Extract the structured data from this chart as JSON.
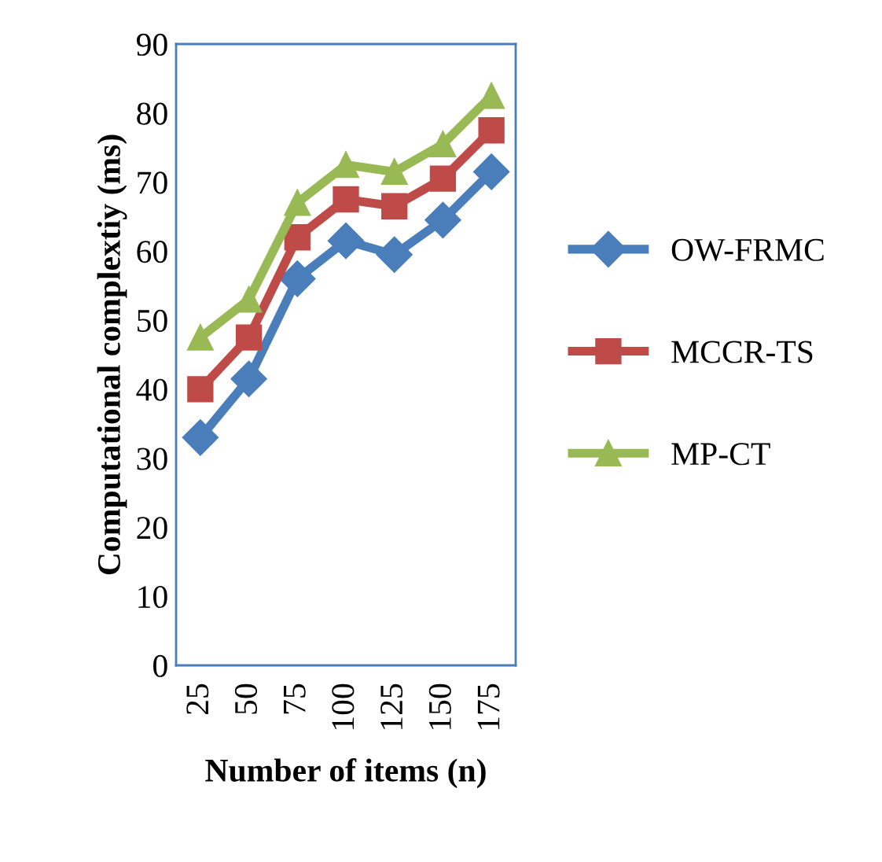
{
  "chart_data": {
    "type": "line",
    "xlabel": "Number of items (n)",
    "ylabel": "Computational complextiy (ms)",
    "categories": [
      "25",
      "50",
      "75",
      "100",
      "125",
      "150",
      "175"
    ],
    "series": [
      {
        "name": "OW-FRMC",
        "color": "#4a7ebb",
        "marker": "diamond",
        "values": [
          33,
          41.5,
          56,
          61.5,
          59.5,
          64.5,
          71.5
        ]
      },
      {
        "name": "MCCR-TS",
        "color": "#be4b48",
        "marker": "square",
        "values": [
          40,
          47.5,
          62,
          67.5,
          66.5,
          70.5,
          77.5
        ]
      },
      {
        "name": "MP-CT",
        "color": "#98b954",
        "marker": "triangle",
        "values": [
          47.5,
          53,
          67,
          72.5,
          71.5,
          75.5,
          82.5
        ]
      }
    ],
    "ylim": [
      0,
      90
    ],
    "yticks": [
      0,
      10,
      20,
      30,
      40,
      50,
      60,
      70,
      80,
      90
    ],
    "grid": false,
    "legend": "right"
  }
}
